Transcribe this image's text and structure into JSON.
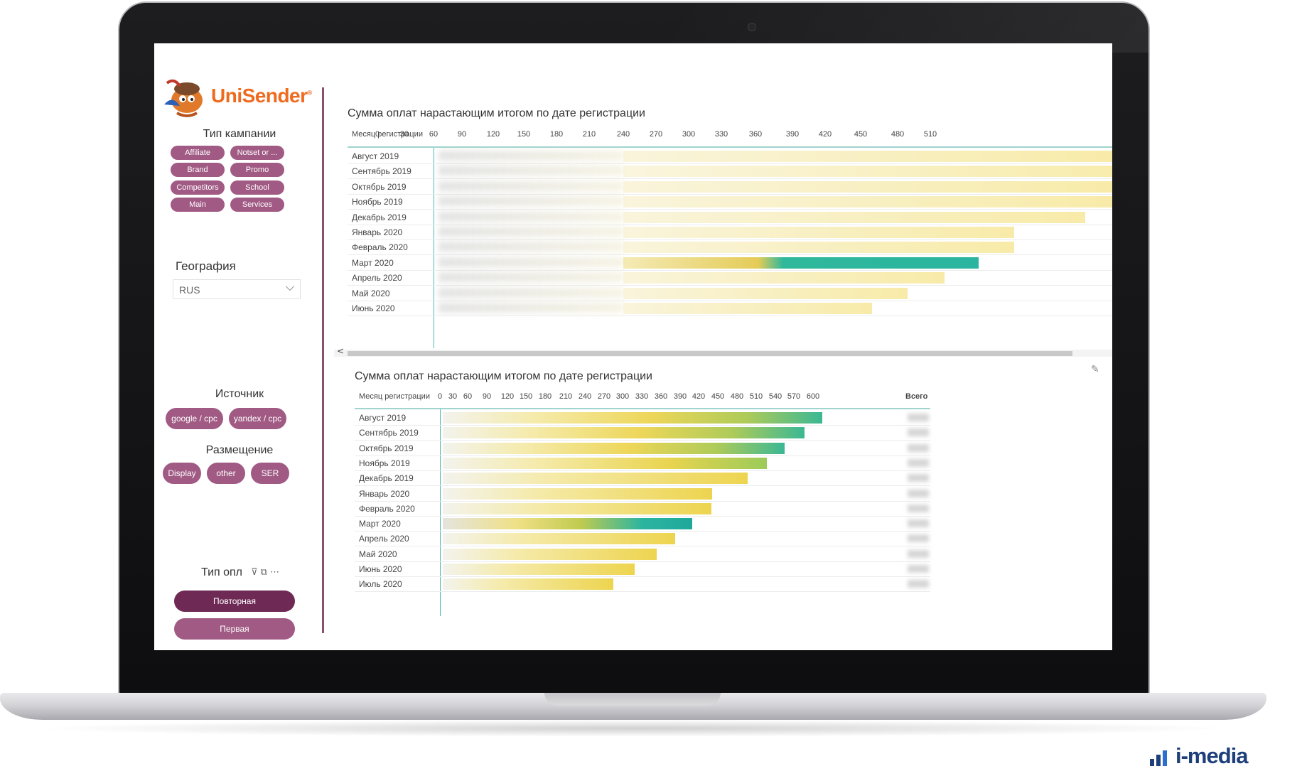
{
  "sidebar": {
    "logo_text": "UniSender",
    "logo_reg": "®",
    "campaign_type_title": "Тип кампании",
    "campaign_types": [
      "Affiliate",
      "Notset or ...",
      "Brand",
      "Promo",
      "Competitors",
      "School",
      "Main",
      "Services"
    ],
    "geo_title": "География",
    "geo_value": "RUS",
    "source_title": "Источник",
    "sources": [
      "google / cpc",
      "yandex / cpc"
    ],
    "placement_title": "Размещение",
    "placements": [
      "Display",
      "other",
      "SER"
    ],
    "pay_type_title": "Тип опл",
    "pay_types": [
      "Повторная",
      "Первая"
    ],
    "pay_type_selected": "Повторная"
  },
  "chart_top": {
    "title": "Сумма оплат нарастающим итогом по дате регистрации",
    "col_header": "Месяц регистрации",
    "ticks": [
      "0",
      "30",
      "60",
      "90",
      "120",
      "150",
      "180",
      "210",
      "240",
      "270",
      "300",
      "330",
      "360",
      "390",
      "420",
      "450",
      "480",
      "510"
    ],
    "rows": [
      "Август 2019",
      "Сентябрь 2019",
      "Октябрь 2019",
      "Ноябрь 2019",
      "Декабрь 2019",
      "Январь 2020",
      "Февраль 2020",
      "Март 2020",
      "Апрель 2020",
      "Май 2020",
      "Июнь 2020"
    ],
    "scroll_left": "<"
  },
  "chart_bottom": {
    "title": "Сумма оплат нарастающим итогом по дате регистрации",
    "col_header": "Месяц регистрации",
    "ticks": [
      "0",
      "30",
      "60",
      "90",
      "120",
      "150",
      "180",
      "210",
      "240",
      "270",
      "300",
      "330",
      "360",
      "390",
      "420",
      "450",
      "480",
      "510",
      "540",
      "570",
      "600"
    ],
    "total_header": "Всего",
    "rows": [
      "Август 2019",
      "Сентябрь 2019",
      "Октябрь 2019",
      "Ноябрь 2019",
      "Декабрь 2019",
      "Январь 2020",
      "Февраль 2020",
      "Март 2020",
      "Апрель 2020",
      "Май 2020",
      "Июнь 2020",
      "Июль 2020"
    ]
  },
  "brand": {
    "text": "i-media",
    "color": "#1e3f7a"
  },
  "colors": {
    "accent": "#a05a84",
    "accent_dark": "#6e2a55",
    "divider": "#8a4f73",
    "teal": "#2bb5a0",
    "yellow": "#f3de7a"
  },
  "icons": {
    "filter": "filter-icon",
    "expand": "expand-icon",
    "more": "more-icon",
    "pin": "pin-icon",
    "chevron": "chevron-down-icon"
  }
}
